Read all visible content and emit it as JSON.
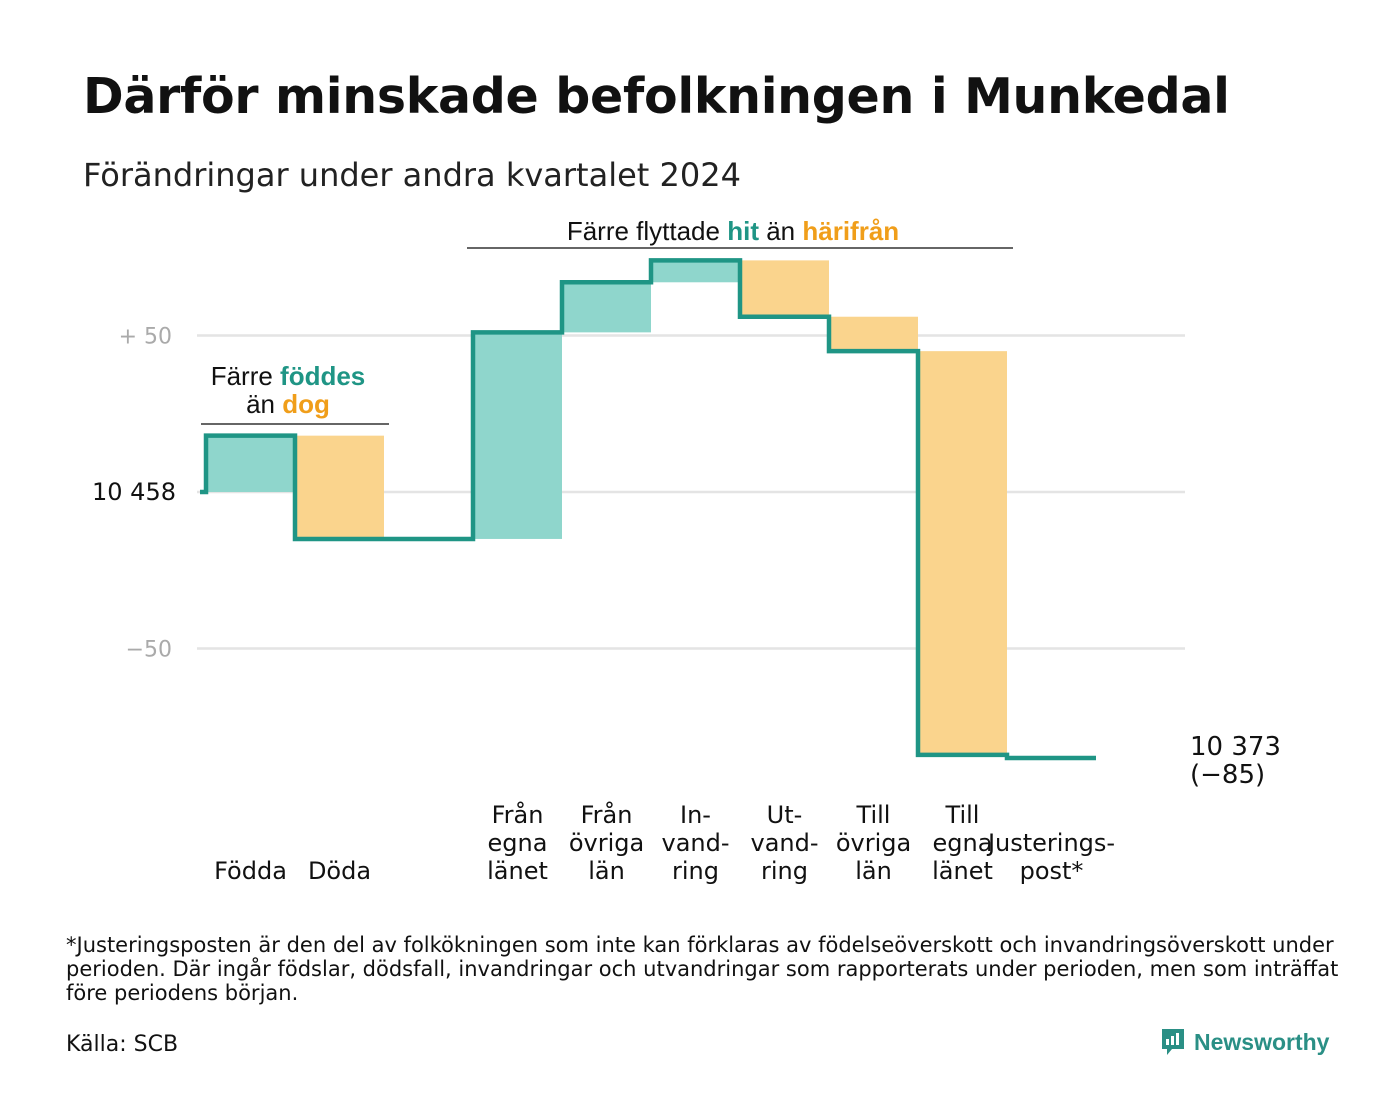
{
  "title": "Därför minskade befolkningen i Munkedal",
  "subtitle": "Förändringar under andra kvartalet 2024",
  "colors": {
    "increase_fill": "#8fd6cc",
    "decrease_fill": "#fad48d",
    "line": "#1f9585",
    "teal_text": "#1f9585",
    "orange_text": "#f09e1a",
    "gridline": "#e4e4e4",
    "tick_text": "#aaaaaa",
    "brand": "#2a8f85"
  },
  "chart_data": {
    "type": "waterfall",
    "start_value": 10458,
    "start_label": "10  458",
    "end_value": 10373,
    "end_label": "10 373",
    "end_change_label": "(−85)",
    "yticks": [
      {
        "value": 50,
        "label": "+  50"
      },
      {
        "value": 0,
        "label": ""
      },
      {
        "value": -50,
        "label": "−50"
      }
    ],
    "ylim": [
      -85,
      75
    ],
    "grid": true,
    "steps": [
      {
        "category": "Födda",
        "label_lines": [
          "Födda"
        ],
        "change": 18,
        "kind": "increase"
      },
      {
        "category": "Döda",
        "label_lines": [
          "Döda"
        ],
        "change": -33,
        "kind": "decrease"
      },
      {
        "category": "",
        "label_lines": [],
        "change": 0,
        "kind": "none"
      },
      {
        "category": "Från egna länet",
        "label_lines": [
          "Från",
          "egna",
          "länet"
        ],
        "change": 66,
        "kind": "increase"
      },
      {
        "category": "Från övriga län",
        "label_lines": [
          "Från",
          "övriga",
          "län"
        ],
        "change": 16,
        "kind": "increase"
      },
      {
        "category": "Invandring",
        "label_lines": [
          "In-",
          "vand-",
          "ring"
        ],
        "change": 7,
        "kind": "increase"
      },
      {
        "category": "Utvandring",
        "label_lines": [
          "Ut-",
          "vand-",
          "ring"
        ],
        "change": -18,
        "kind": "decrease"
      },
      {
        "category": "Till övriga län",
        "label_lines": [
          "Till",
          "övriga",
          "län"
        ],
        "change": -11,
        "kind": "decrease"
      },
      {
        "category": "Till egna länet",
        "label_lines": [
          "Till",
          "egna",
          "länet"
        ],
        "change": -129,
        "kind": "decrease"
      },
      {
        "category": "Justeringspost*",
        "label_lines": [
          "Justerings-",
          "post*"
        ],
        "change": -1,
        "kind": "adjustment"
      }
    ],
    "annotations": [
      {
        "id": "births",
        "line1": [
          {
            "text": "Färre ",
            "style": "plain"
          },
          {
            "text": "föddes",
            "style": "teal"
          }
        ],
        "line2": [
          {
            "text": "än ",
            "style": "plain"
          },
          {
            "text": "dog",
            "style": "orange"
          }
        ]
      },
      {
        "id": "moves",
        "line1": [
          {
            "text": "Färre flyttade ",
            "style": "plain"
          },
          {
            "text": "hit",
            "style": "teal"
          },
          {
            "text": "  än ",
            "style": "plain"
          },
          {
            "text": "härifrån",
            "style": "orange"
          }
        ]
      }
    ]
  },
  "footnote": "*Justeringsposten är den del av folkökningen som inte kan förklaras av födelseöverskott och invandringsöverskott under perioden. Där ingår födslar, dödsfall, invandringar och utvandringar som rapporterats under perioden, men som inträffat före periodens början.",
  "source": "Källa: SCB",
  "brand": {
    "name": "Newsworthy",
    "icon": "newsworthy-logo-icon"
  }
}
